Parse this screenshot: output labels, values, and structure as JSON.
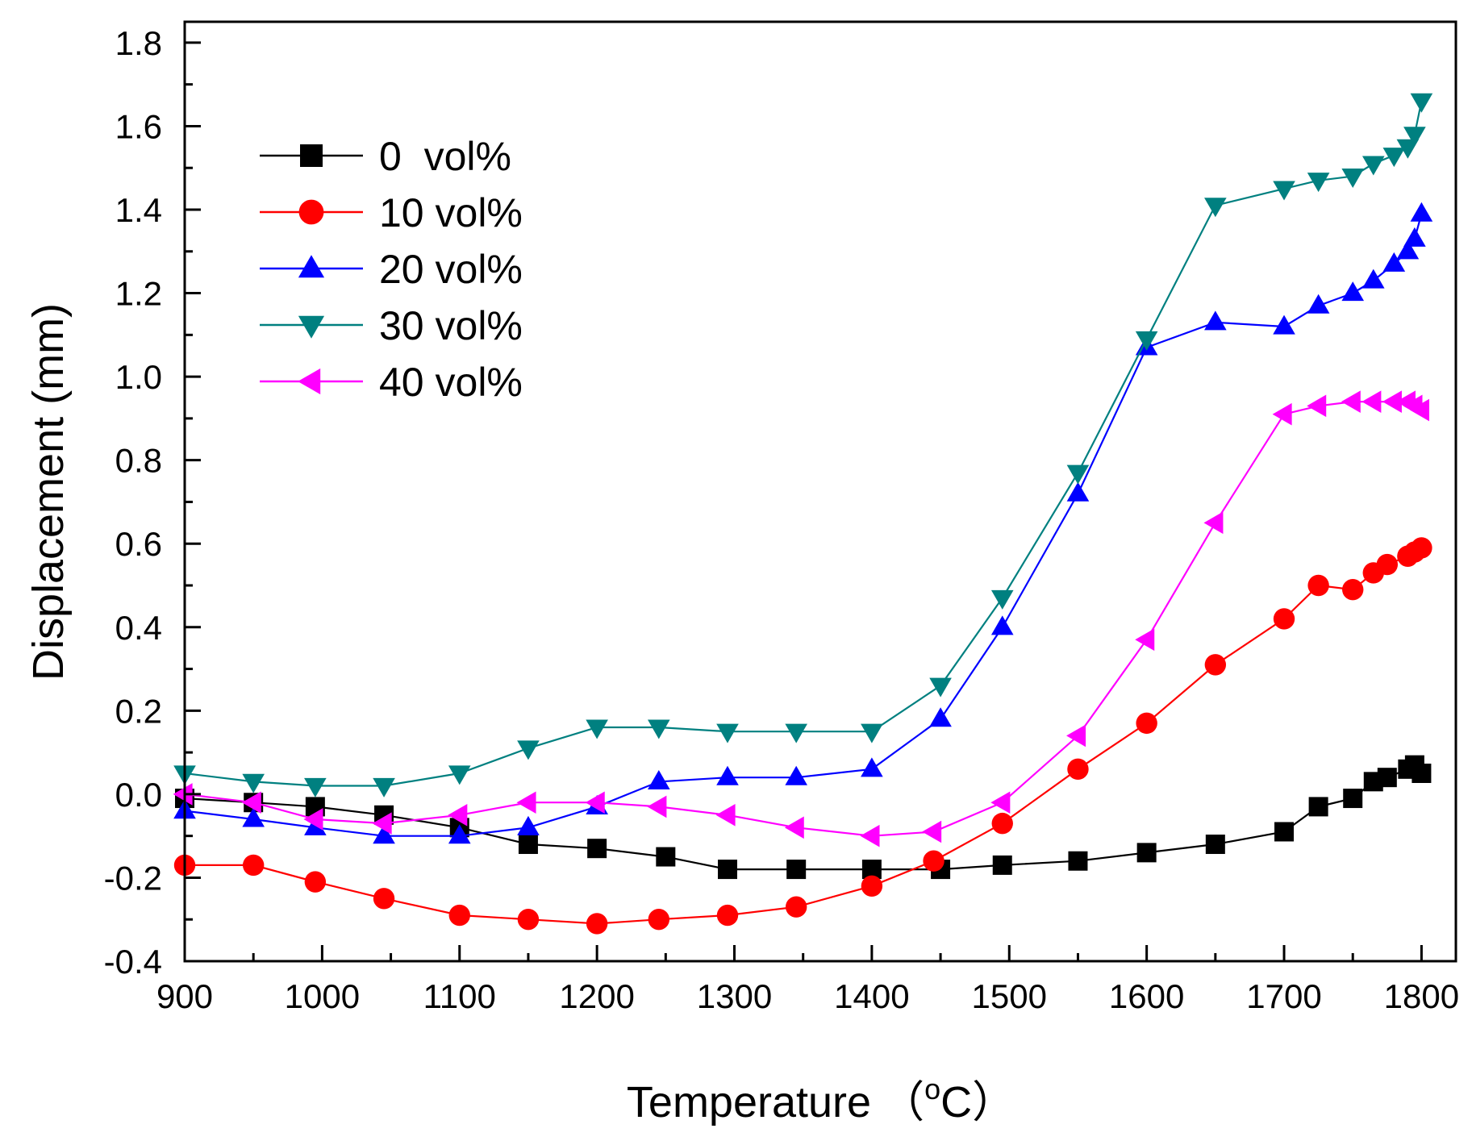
{
  "chart_data": {
    "type": "line",
    "xlabel": "Temperature",
    "xlabel_unit": {
      "open": "（",
      "sup": "o",
      "base": "C",
      "close": "）"
    },
    "ylabel": "Displacement (mm)",
    "xlim": [
      900,
      1825
    ],
    "ylim": [
      -0.4,
      1.85
    ],
    "x_ticks": [
      900,
      1000,
      1100,
      1200,
      1300,
      1400,
      1500,
      1600,
      1700,
      1800
    ],
    "x_tick_labels": [
      "900",
      "1000",
      "1100",
      "1200",
      "1300",
      "1400",
      "1500",
      "1600",
      "1700",
      "1800"
    ],
    "y_ticks": [
      -0.4,
      -0.2,
      0.0,
      0.2,
      0.4,
      0.6,
      0.8,
      1.0,
      1.2,
      1.4,
      1.6,
      1.8
    ],
    "y_tick_labels": [
      "-0.4",
      "-0.2",
      "0.0",
      "0.2",
      "0.4",
      "0.6",
      "0.8",
      "1.0",
      "1.2",
      "1.4",
      "1.6",
      "1.8"
    ],
    "legend_position": "top-left",
    "series": [
      {
        "name": "0  vol%",
        "color": "#000000",
        "marker": "square",
        "x": [
          900,
          950,
          995,
          1045,
          1100,
          1150,
          1200,
          1250,
          1295,
          1345,
          1400,
          1450,
          1495,
          1550,
          1600,
          1650,
          1700,
          1725,
          1750,
          1765,
          1775,
          1790,
          1795,
          1800
        ],
        "y": [
          -0.01,
          -0.02,
          -0.03,
          -0.05,
          -0.08,
          -0.12,
          -0.13,
          -0.15,
          -0.18,
          -0.18,
          -0.18,
          -0.18,
          -0.17,
          -0.16,
          -0.14,
          -0.12,
          -0.09,
          -0.03,
          -0.01,
          0.03,
          0.04,
          0.06,
          0.07,
          0.05
        ]
      },
      {
        "name": "10 vol%",
        "color": "#ff0000",
        "marker": "circle",
        "x": [
          900,
          950,
          995,
          1045,
          1100,
          1150,
          1200,
          1245,
          1295,
          1345,
          1400,
          1445,
          1495,
          1550,
          1600,
          1650,
          1700,
          1725,
          1750,
          1765,
          1775,
          1790,
          1795,
          1800
        ],
        "y": [
          -0.17,
          -0.17,
          -0.21,
          -0.25,
          -0.29,
          -0.3,
          -0.31,
          -0.3,
          -0.29,
          -0.27,
          -0.22,
          -0.16,
          -0.07,
          0.06,
          0.17,
          0.31,
          0.42,
          0.5,
          0.49,
          0.53,
          0.55,
          0.57,
          0.58,
          0.59
        ]
      },
      {
        "name": "20 vol%",
        "color": "#0000ff",
        "marker": "triangle-up",
        "x": [
          900,
          950,
          995,
          1045,
          1100,
          1150,
          1200,
          1245,
          1295,
          1345,
          1400,
          1450,
          1495,
          1550,
          1600,
          1650,
          1700,
          1725,
          1750,
          1765,
          1780,
          1790,
          1795,
          1800
        ],
        "y": [
          -0.04,
          -0.06,
          -0.08,
          -0.1,
          -0.1,
          -0.08,
          -0.03,
          0.03,
          0.04,
          0.04,
          0.06,
          0.18,
          0.4,
          0.72,
          1.07,
          1.13,
          1.12,
          1.17,
          1.2,
          1.23,
          1.27,
          1.3,
          1.33,
          1.39
        ]
      },
      {
        "name": "30 vol%",
        "color": "#008080",
        "marker": "triangle-down",
        "x": [
          900,
          950,
          995,
          1045,
          1100,
          1150,
          1200,
          1245,
          1295,
          1345,
          1400,
          1450,
          1495,
          1550,
          1600,
          1650,
          1700,
          1725,
          1750,
          1765,
          1780,
          1790,
          1795,
          1800
        ],
        "y": [
          0.05,
          0.03,
          0.02,
          0.02,
          0.05,
          0.11,
          0.16,
          0.16,
          0.15,
          0.15,
          0.15,
          0.26,
          0.47,
          0.77,
          1.09,
          1.41,
          1.45,
          1.47,
          1.48,
          1.51,
          1.53,
          1.55,
          1.58,
          1.66
        ]
      },
      {
        "name": "40 vol%",
        "color": "#ff00ff",
        "marker": "triangle-left",
        "x": [
          900,
          950,
          995,
          1045,
          1100,
          1150,
          1200,
          1245,
          1295,
          1345,
          1400,
          1445,
          1495,
          1550,
          1600,
          1650,
          1700,
          1725,
          1750,
          1765,
          1780,
          1790,
          1795,
          1800
        ],
        "y": [
          0.0,
          -0.02,
          -0.06,
          -0.07,
          -0.05,
          -0.02,
          -0.02,
          -0.03,
          -0.05,
          -0.08,
          -0.1,
          -0.09,
          -0.02,
          0.14,
          0.37,
          0.65,
          0.91,
          0.93,
          0.94,
          0.94,
          0.94,
          0.94,
          0.93,
          0.92
        ]
      }
    ]
  }
}
